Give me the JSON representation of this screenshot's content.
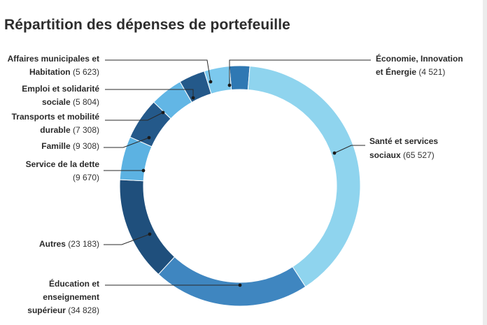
{
  "title": "Répartition des dépenses de portefeuille",
  "chart_data": {
    "type": "pie",
    "donut": true,
    "title": "Répartition des dépenses de portefeuille",
    "colors": {
      "light": "#8fd4ee",
      "medium": "#4a90c6",
      "dark": "#1f4f7c",
      "sky": "#5cb2e2",
      "mid2": "#2f6fa2"
    },
    "slices": [
      {
        "name": "Économie, Innovation et Énergie",
        "value": 4521,
        "value_label": "4 521",
        "color": "#2f78b3"
      },
      {
        "name": "Santé et services sociaux",
        "value": 65527,
        "value_label": "65 527",
        "color": "#8fd4ee"
      },
      {
        "name": "Éducation et enseignement supérieur",
        "value": 34828,
        "value_label": "34 828",
        "color": "#3f86c0"
      },
      {
        "name": "Autres",
        "value": 23183,
        "value_label": "23 183",
        "color": "#1f4f7c"
      },
      {
        "name": "Service de la dette",
        "value": 9670,
        "value_label": "9 670",
        "color": "#5cb2e2"
      },
      {
        "name": "Famille",
        "value": 9308,
        "value_label": "9 308",
        "color": "#24598a"
      },
      {
        "name": "Transports et mobilité durable",
        "value": 7308,
        "value_label": "7 308",
        "color": "#62b6e5"
      },
      {
        "name": "Emploi et solidarité sociale",
        "value": 5804,
        "value_label": "5 804",
        "color": "#24598a"
      },
      {
        "name": "Affaires municipales et Habitation",
        "value": 5623,
        "value_label": "5 623",
        "color": "#7cc9ee"
      }
    ]
  }
}
